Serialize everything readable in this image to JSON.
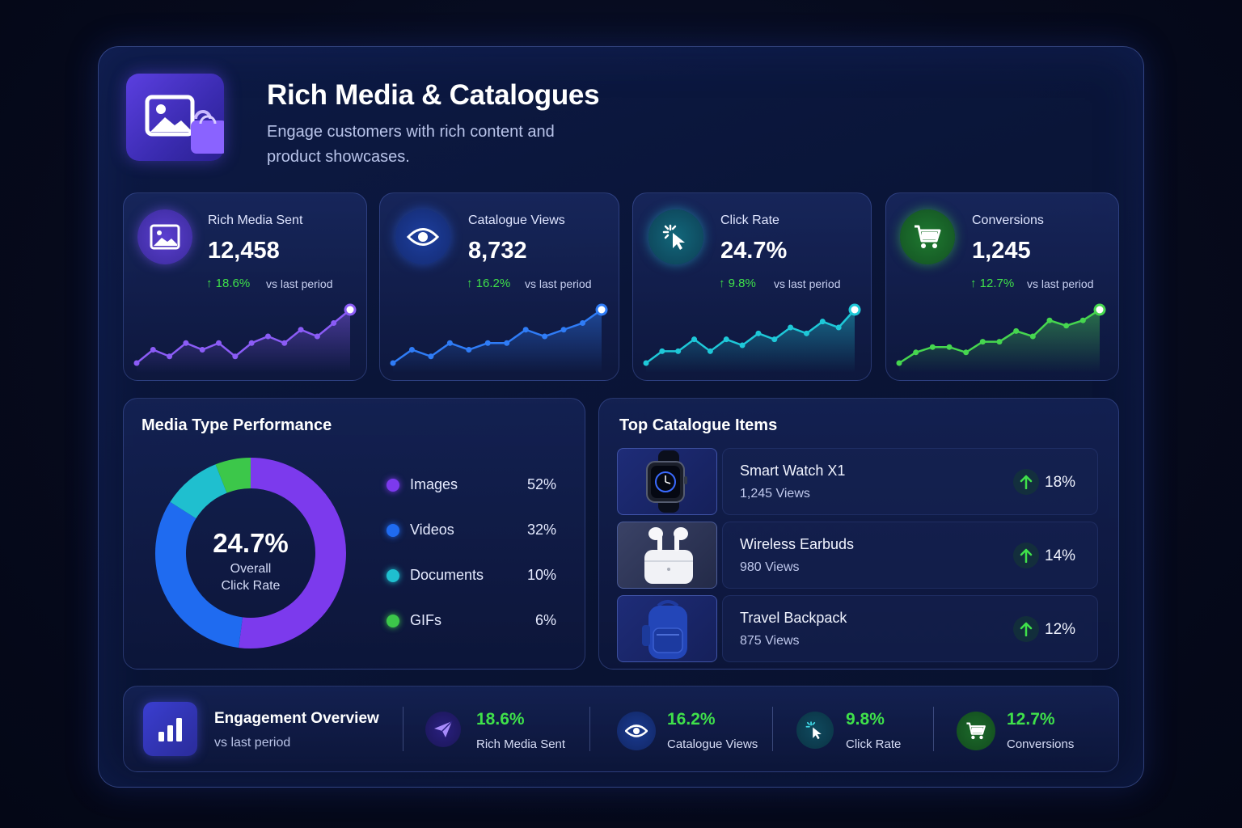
{
  "header": {
    "title": "Rich Media & Catalogues",
    "subtitle": "Engage customers with rich content and product showcases.",
    "icon": "image-shopping-bag-icon"
  },
  "stats": [
    {
      "label": "Rich Media Sent",
      "value": "12,458",
      "change": "18.6%",
      "vs": "vs last period",
      "icon": "image-icon",
      "color": "#8b5cf6",
      "spark": [
        2,
        4,
        3,
        5,
        4,
        5,
        3,
        5,
        6,
        5,
        7,
        6,
        8,
        10
      ]
    },
    {
      "label": "Catalogue Views",
      "value": "8,732",
      "change": "16.2%",
      "vs": "vs last period",
      "icon": "eye-icon",
      "color": "#2f7cf6",
      "spark": [
        2,
        4,
        3,
        5,
        4,
        5,
        5,
        7,
        6,
        7,
        8,
        10
      ]
    },
    {
      "label": "Click Rate",
      "value": "24.7%",
      "change": "9.8%",
      "vs": "vs last period",
      "icon": "cursor-click-icon",
      "color": "#1ec8d8",
      "spark": [
        2,
        4,
        4,
        6,
        4,
        6,
        5,
        7,
        6,
        8,
        7,
        9,
        8,
        11
      ]
    },
    {
      "label": "Conversions",
      "value": "1,245",
      "change": "12.7%",
      "vs": "vs last period",
      "icon": "shopping-cart-icon",
      "color": "#46d64f",
      "spark": [
        2,
        4,
        5,
        5,
        4,
        6,
        6,
        8,
        7,
        10,
        9,
        10,
        12
      ]
    }
  ],
  "media_performance": {
    "title": "Media Type Performance",
    "center_value": "24.7%",
    "center_label_1": "Overall",
    "center_label_2": "Click Rate",
    "items": [
      {
        "name": "Images",
        "pct": "52%",
        "value": 52,
        "color": "#7c3aed"
      },
      {
        "name": "Videos",
        "pct": "32%",
        "value": 32,
        "color": "#1f6bf0"
      },
      {
        "name": "Documents",
        "pct": "10%",
        "value": 10,
        "color": "#1fbfcf"
      },
      {
        "name": "GIFs",
        "pct": "6%",
        "value": 6,
        "color": "#3cc74a"
      }
    ]
  },
  "catalogue": {
    "title": "Top Catalogue Items",
    "items": [
      {
        "name": "Smart Watch X1",
        "views": "1,245 Views",
        "pct": "18%",
        "icon": "smart-watch-image"
      },
      {
        "name": "Wireless Earbuds",
        "views": "980 Views",
        "pct": "14%",
        "icon": "earbuds-image"
      },
      {
        "name": "Travel Backpack",
        "views": "875 Views",
        "pct": "12%",
        "icon": "backpack-image"
      }
    ]
  },
  "engagement": {
    "title": "Engagement Overview",
    "subtitle": "vs last period",
    "icon": "bar-chart-icon",
    "metrics": [
      {
        "value": "18.6%",
        "label": "Rich Media Sent",
        "icon": "send-icon"
      },
      {
        "value": "16.2%",
        "label": "Catalogue Views",
        "icon": "eye-icon"
      },
      {
        "value": "9.8%",
        "label": "Click Rate",
        "icon": "cursor-click-icon"
      },
      {
        "value": "12.7%",
        "label": "Conversions",
        "icon": "shopping-cart-icon"
      }
    ]
  }
}
